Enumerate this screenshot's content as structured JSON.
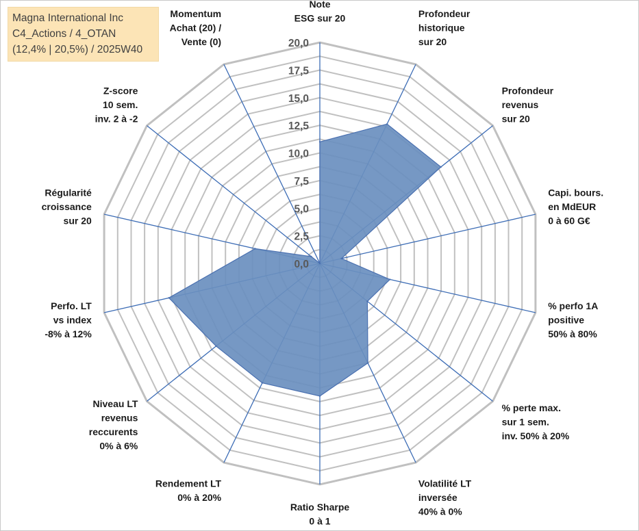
{
  "title_box": {
    "line1": "Magna International Inc",
    "line2": "C4_Actions / 4_OTAN",
    "line3": "(12,4% | 20,5%) / 2025W40"
  },
  "colors": {
    "grid": "#c0c0c0",
    "spoke": "#3c6cb5",
    "fill": "#6a8fbf",
    "stroke": "#4a70b0"
  },
  "chart_data": {
    "type": "radar",
    "title": "Magna International Inc",
    "rmin": 0,
    "rmax": 20,
    "step": 2.5,
    "tick_labels": [
      "0,0",
      "2,5",
      "5,0",
      "7,5",
      "10,0",
      "12,5",
      "15,0",
      "17,5",
      "20,0"
    ],
    "axes": [
      {
        "label": [
          "Note",
          "ESG sur 20"
        ],
        "value": 11.0
      },
      {
        "label": [
          "Profondeur",
          "historique",
          "sur 20"
        ],
        "value": 14.0
      },
      {
        "label": [
          "Profondeur",
          "revenus",
          "sur 20"
        ],
        "value": 14.0
      },
      {
        "label": [
          "Capi. bours.",
          "en MdEUR",
          "0 à 60 G€"
        ],
        "value": 2.0
      },
      {
        "label": [
          "% perfo 1A",
          "positive",
          "50% à 80%"
        ],
        "value": 6.5
      },
      {
        "label": [
          "% perte max.",
          "sur 1 sem.",
          "inv. 50% à 20%"
        ],
        "value": 5.5
      },
      {
        "label": [
          "Volatilité LT",
          "inversée",
          "40% à 0%"
        ],
        "value": 10.0
      },
      {
        "label": [
          "Ratio Sharpe",
          "0 à 1"
        ],
        "value": 12.0
      },
      {
        "label": [
          "Rendement LT",
          "0% à 20%"
        ],
        "value": 12.0
      },
      {
        "label": [
          "Niveau LT",
          "revenus",
          "reccurents",
          "0% à 6%"
        ],
        "value": 12.0
      },
      {
        "label": [
          "Perfo. LT",
          "vs index",
          "-8% à 12%"
        ],
        "value": 14.0
      },
      {
        "label": [
          "Régularité",
          "croissance",
          "sur 20"
        ],
        "value": 6.0
      },
      {
        "label": [
          "Z-score",
          "10 sem.",
          "inv. 2 à -2"
        ],
        "value": 1.0
      },
      {
        "label": [
          "Momentum",
          "Achat (20) /",
          "Vente (0)"
        ],
        "value": 0.0
      }
    ]
  }
}
